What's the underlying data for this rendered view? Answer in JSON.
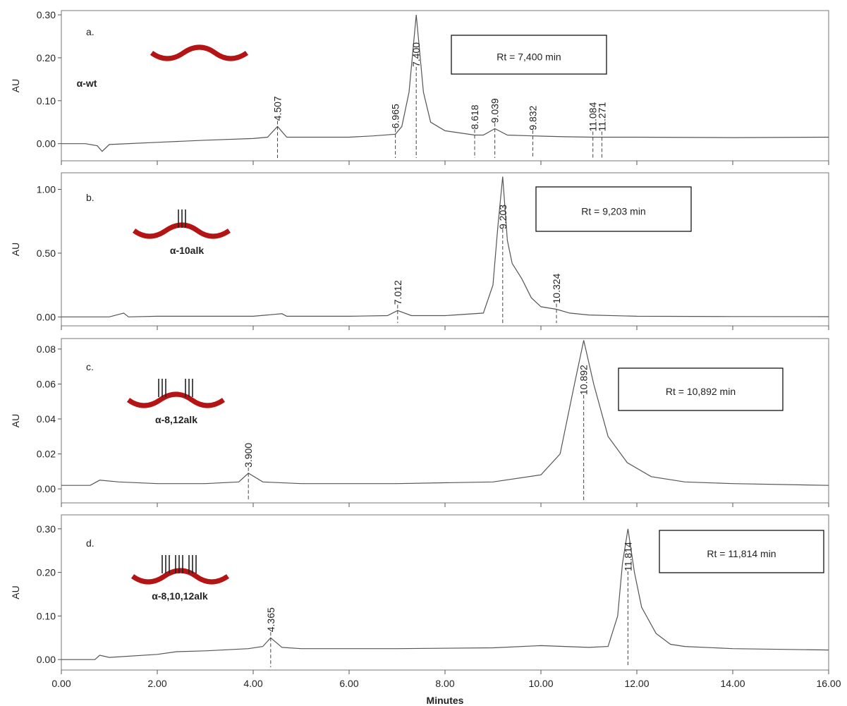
{
  "chart_data": [
    {
      "type": "line",
      "panel_label": "a.",
      "molecule": "α-wt",
      "annotation": "Rt = 7,400 min",
      "y_label": "AU",
      "x": [
        0,
        0.5,
        0.75,
        0.85,
        1.0,
        2,
        3,
        4,
        4.3,
        4.507,
        4.7,
        5,
        6,
        6.5,
        6.965,
        7.1,
        7.25,
        7.4,
        7.55,
        7.7,
        8,
        8.618,
        8.8,
        9.039,
        9.3,
        9.832,
        10.5,
        11.084,
        11.271,
        12,
        14,
        16
      ],
      "values": [
        0,
        0,
        -0.005,
        -0.018,
        -0.002,
        0.003,
        0.008,
        0.012,
        0.015,
        0.04,
        0.015,
        0.015,
        0.015,
        0.018,
        0.022,
        0.04,
        0.12,
        0.3,
        0.12,
        0.05,
        0.03,
        0.02,
        0.02,
        0.035,
        0.02,
        0.018,
        0.016,
        0.015,
        0.015,
        0.015,
        0.014,
        0.015
      ],
      "color": "#555555",
      "peaks": [
        4.507,
        6.965,
        {
          "value": 7.4,
          "label": "7.400"
        },
        8.618,
        9.039,
        9.832,
        11.084,
        11.271
      ],
      "xlim": [
        0,
        16
      ],
      "xticks": [
        0,
        2,
        4,
        6,
        8,
        10,
        12,
        14,
        16
      ],
      "ylim": [
        -0.04,
        0.31
      ],
      "yticks": [
        {
          "value": 0,
          "label": "0.00"
        },
        {
          "value": 0.1,
          "label": "0.10"
        },
        {
          "value": 0.2,
          "label": "0.20"
        },
        {
          "value": 0.3,
          "label": "0.30"
        }
      ]
    },
    {
      "type": "line",
      "panel_label": "b.",
      "molecule": "α-10alk",
      "annotation": "Rt = 9,203 min",
      "y_label": "AU",
      "x": [
        0,
        1,
        1.3,
        1.4,
        2,
        4,
        4.6,
        4.7,
        6,
        6.8,
        7.012,
        7.3,
        8,
        8.8,
        9.0,
        9.1,
        9.203,
        9.3,
        9.4,
        9.6,
        9.8,
        10.0,
        10.324,
        10.6,
        11,
        12,
        14,
        16
      ],
      "values": [
        0,
        0,
        0.03,
        0,
        0.005,
        0.005,
        0.025,
        0.005,
        0.005,
        0.01,
        0.05,
        0.01,
        0.01,
        0.03,
        0.25,
        0.7,
        1.1,
        0.6,
        0.42,
        0.3,
        0.15,
        0.08,
        0.06,
        0.03,
        0.015,
        0.005,
        0.003,
        0.002
      ],
      "color": "#555555",
      "peaks": [
        7.012,
        9.203,
        10.324
      ],
      "xlim": [
        0,
        16
      ],
      "xticks": [
        0,
        2,
        4,
        6,
        8,
        10,
        12,
        14,
        16
      ],
      "ylim": [
        -0.07,
        1.13
      ],
      "yticks": [
        {
          "value": 0,
          "label": "0.00"
        },
        {
          "value": 0.5,
          "label": "0.50"
        },
        {
          "value": 1,
          "label": "1.00"
        }
      ]
    },
    {
      "type": "line",
      "panel_label": "c.",
      "molecule": "α-8,12alk",
      "annotation": "Rt = 10,892 min",
      "y_label": "AU",
      "x": [
        0,
        0.6,
        0.8,
        1.2,
        2,
        3,
        3.7,
        3.9,
        4.2,
        5,
        7,
        9,
        10,
        10.4,
        10.7,
        10.892,
        11.1,
        11.4,
        11.8,
        12.3,
        13,
        14,
        16
      ],
      "values": [
        0.002,
        0.002,
        0.005,
        0.004,
        0.003,
        0.003,
        0.004,
        0.009,
        0.004,
        0.003,
        0.003,
        0.004,
        0.008,
        0.02,
        0.06,
        0.085,
        0.06,
        0.03,
        0.015,
        0.007,
        0.004,
        0.003,
        0.002
      ],
      "color": "#555555",
      "peaks": [
        {
          "value": 3.9,
          "label": "3.900"
        },
        10.892
      ],
      "xlim": [
        0,
        16
      ],
      "xticks": [
        0,
        2,
        4,
        6,
        8,
        10,
        12,
        14,
        16
      ],
      "ylim": [
        -0.008,
        0.086
      ],
      "yticks": [
        {
          "value": 0,
          "label": "0.00"
        },
        {
          "value": 0.02,
          "label": "0.02"
        },
        {
          "value": 0.04,
          "label": "0.04"
        },
        {
          "value": 0.06,
          "label": "0.06"
        },
        {
          "value": 0.08,
          "label": "0.08"
        }
      ]
    },
    {
      "type": "line",
      "panel_label": "d.",
      "molecule": "α-8,10,12alk",
      "annotation": "Rt = 11,814 min",
      "y_label": "AU",
      "x_label": "Minutes",
      "x": [
        0,
        0.7,
        0.8,
        1.0,
        2,
        2.4,
        3,
        3.9,
        4.2,
        4.365,
        4.6,
        5,
        7,
        9,
        10,
        11,
        11.4,
        11.6,
        11.7,
        11.814,
        11.95,
        12.1,
        12.4,
        12.7,
        13,
        14,
        16
      ],
      "values": [
        0,
        0,
        0.01,
        0.005,
        0.012,
        0.018,
        0.02,
        0.025,
        0.03,
        0.05,
        0.028,
        0.025,
        0.025,
        0.027,
        0.032,
        0.028,
        0.03,
        0.1,
        0.22,
        0.3,
        0.2,
        0.12,
        0.06,
        0.035,
        0.03,
        0.025,
        0.022
      ],
      "color": "#555555",
      "peaks": [
        4.365,
        11.814
      ],
      "xlim": [
        0,
        16
      ],
      "xticks": [
        {
          "value": 0,
          "label": "0.00"
        },
        {
          "value": 2,
          "label": "2.00"
        },
        {
          "value": 4,
          "label": "4.00"
        },
        {
          "value": 6,
          "label": "6.00"
        },
        {
          "value": 8,
          "label": "8.00"
        },
        {
          "value": 10,
          "label": "10.00"
        },
        {
          "value": 12,
          "label": "12.00"
        },
        {
          "value": 14,
          "label": "14.00"
        },
        {
          "value": 16,
          "label": "16.00"
        }
      ],
      "ylim": [
        -0.024,
        0.332
      ],
      "yticks": [
        {
          "value": 0,
          "label": "0.00"
        },
        {
          "value": 0.1,
          "label": "0.10"
        },
        {
          "value": 0.2,
          "label": "0.20"
        },
        {
          "value": 0.3,
          "label": "0.30"
        }
      ]
    }
  ]
}
